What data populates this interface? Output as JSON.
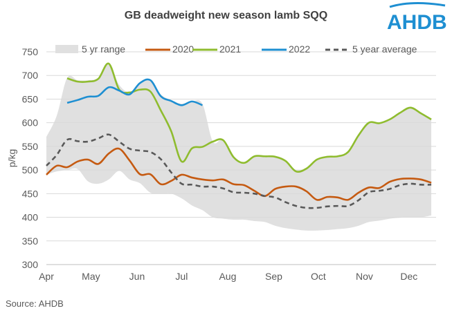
{
  "title": "GB deadweight new season lamb SQQ",
  "logo_text": "AHDB",
  "source": "Source: AHDB",
  "chart_data": {
    "type": "line",
    "title": "GB deadweight new season lamb SQQ",
    "xlabel": "",
    "ylabel": "p/kg",
    "ylim": [
      300,
      750
    ],
    "yticks": [
      300,
      350,
      400,
      450,
      500,
      550,
      600,
      650,
      700,
      750
    ],
    "grid": true,
    "legend": "top",
    "x_tick_labels": [
      "Apr",
      "May",
      "Jun",
      "Jul",
      "Aug",
      "Sep",
      "Oct",
      "Nov",
      "Dec"
    ],
    "x_tick_dates": [
      "04-01",
      "05-01",
      "06-01",
      "07-01",
      "08-01",
      "09-01",
      "10-01",
      "11-01",
      "12-01"
    ],
    "x": [
      "04-01",
      "04-08",
      "04-15",
      "04-22",
      "04-29",
      "05-06",
      "05-13",
      "05-20",
      "05-27",
      "06-03",
      "06-10",
      "06-17",
      "06-24",
      "07-01",
      "07-08",
      "07-15",
      "07-22",
      "07-29",
      "08-05",
      "08-12",
      "08-19",
      "08-26",
      "09-02",
      "09-09",
      "09-16",
      "09-23",
      "09-30",
      "10-07",
      "10-14",
      "10-21",
      "10-28",
      "11-04",
      "11-11",
      "11-18",
      "11-25",
      "12-02",
      "12-09",
      "12-16"
    ],
    "range": {
      "name": "5 yr range",
      "color": "#e0e0e0",
      "upper": [
        570,
        615,
        695,
        690,
        690,
        695,
        725,
        680,
        665,
        685,
        690,
        660,
        648,
        640,
        645,
        640,
        560,
        565,
        530,
        515,
        530,
        530,
        528,
        520,
        500,
        505,
        522,
        528,
        530,
        540,
        575,
        600,
        600,
        608,
        622,
        632,
        620,
        607
      ],
      "lower": [
        490,
        497,
        500,
        502,
        476,
        471,
        480,
        498,
        480,
        472,
        452,
        450,
        450,
        440,
        425,
        415,
        400,
        397,
        395,
        395,
        392,
        390,
        382,
        377,
        374,
        372,
        372,
        373,
        375,
        377,
        382,
        390,
        393,
        397,
        399,
        400,
        400,
        404
      ]
    },
    "series": [
      {
        "name": "2020",
        "color": "#c55a11",
        "dash": false,
        "values": [
          490,
          509,
          506,
          518,
          522,
          513,
          535,
          545,
          520,
          491,
          491,
          470,
          477,
          490,
          484,
          480,
          478,
          480,
          470,
          468,
          456,
          445,
          460,
          465,
          465,
          455,
          437,
          443,
          442,
          437,
          452,
          463,
          462,
          475,
          481,
          482,
          480,
          473
        ]
      },
      {
        "name": "2021",
        "color": "#8fbc2f",
        "dash": false,
        "values": [
          null,
          null,
          694,
          687,
          687,
          693,
          725,
          670,
          664,
          670,
          666,
          626,
          582,
          518,
          546,
          549,
          560,
          563,
          527,
          515,
          529,
          529,
          528,
          519,
          497,
          503,
          522,
          528,
          529,
          538,
          573,
          600,
          599,
          607,
          621,
          632,
          620,
          607
        ]
      },
      {
        "name": "2022",
        "color": "#1e8fd2",
        "dash": false,
        "values": [
          null,
          null,
          642,
          648,
          655,
          657,
          675,
          668,
          660,
          684,
          690,
          656,
          646,
          637,
          645,
          637,
          null,
          null,
          null,
          null,
          null,
          null,
          null,
          null,
          null,
          null,
          null,
          null,
          null,
          null,
          null,
          null,
          null,
          null,
          null,
          null,
          null,
          null
        ]
      },
      {
        "name": "5 year average",
        "color": "#595959",
        "dash": true,
        "values": [
          509,
          532,
          564,
          561,
          560,
          567,
          575,
          560,
          545,
          541,
          538,
          523,
          495,
          471,
          469,
          465,
          465,
          461,
          453,
          452,
          450,
          445,
          442,
          432,
          424,
          420,
          420,
          423,
          424,
          424,
          436,
          453,
          456,
          460,
          468,
          471,
          469,
          469
        ]
      }
    ]
  }
}
